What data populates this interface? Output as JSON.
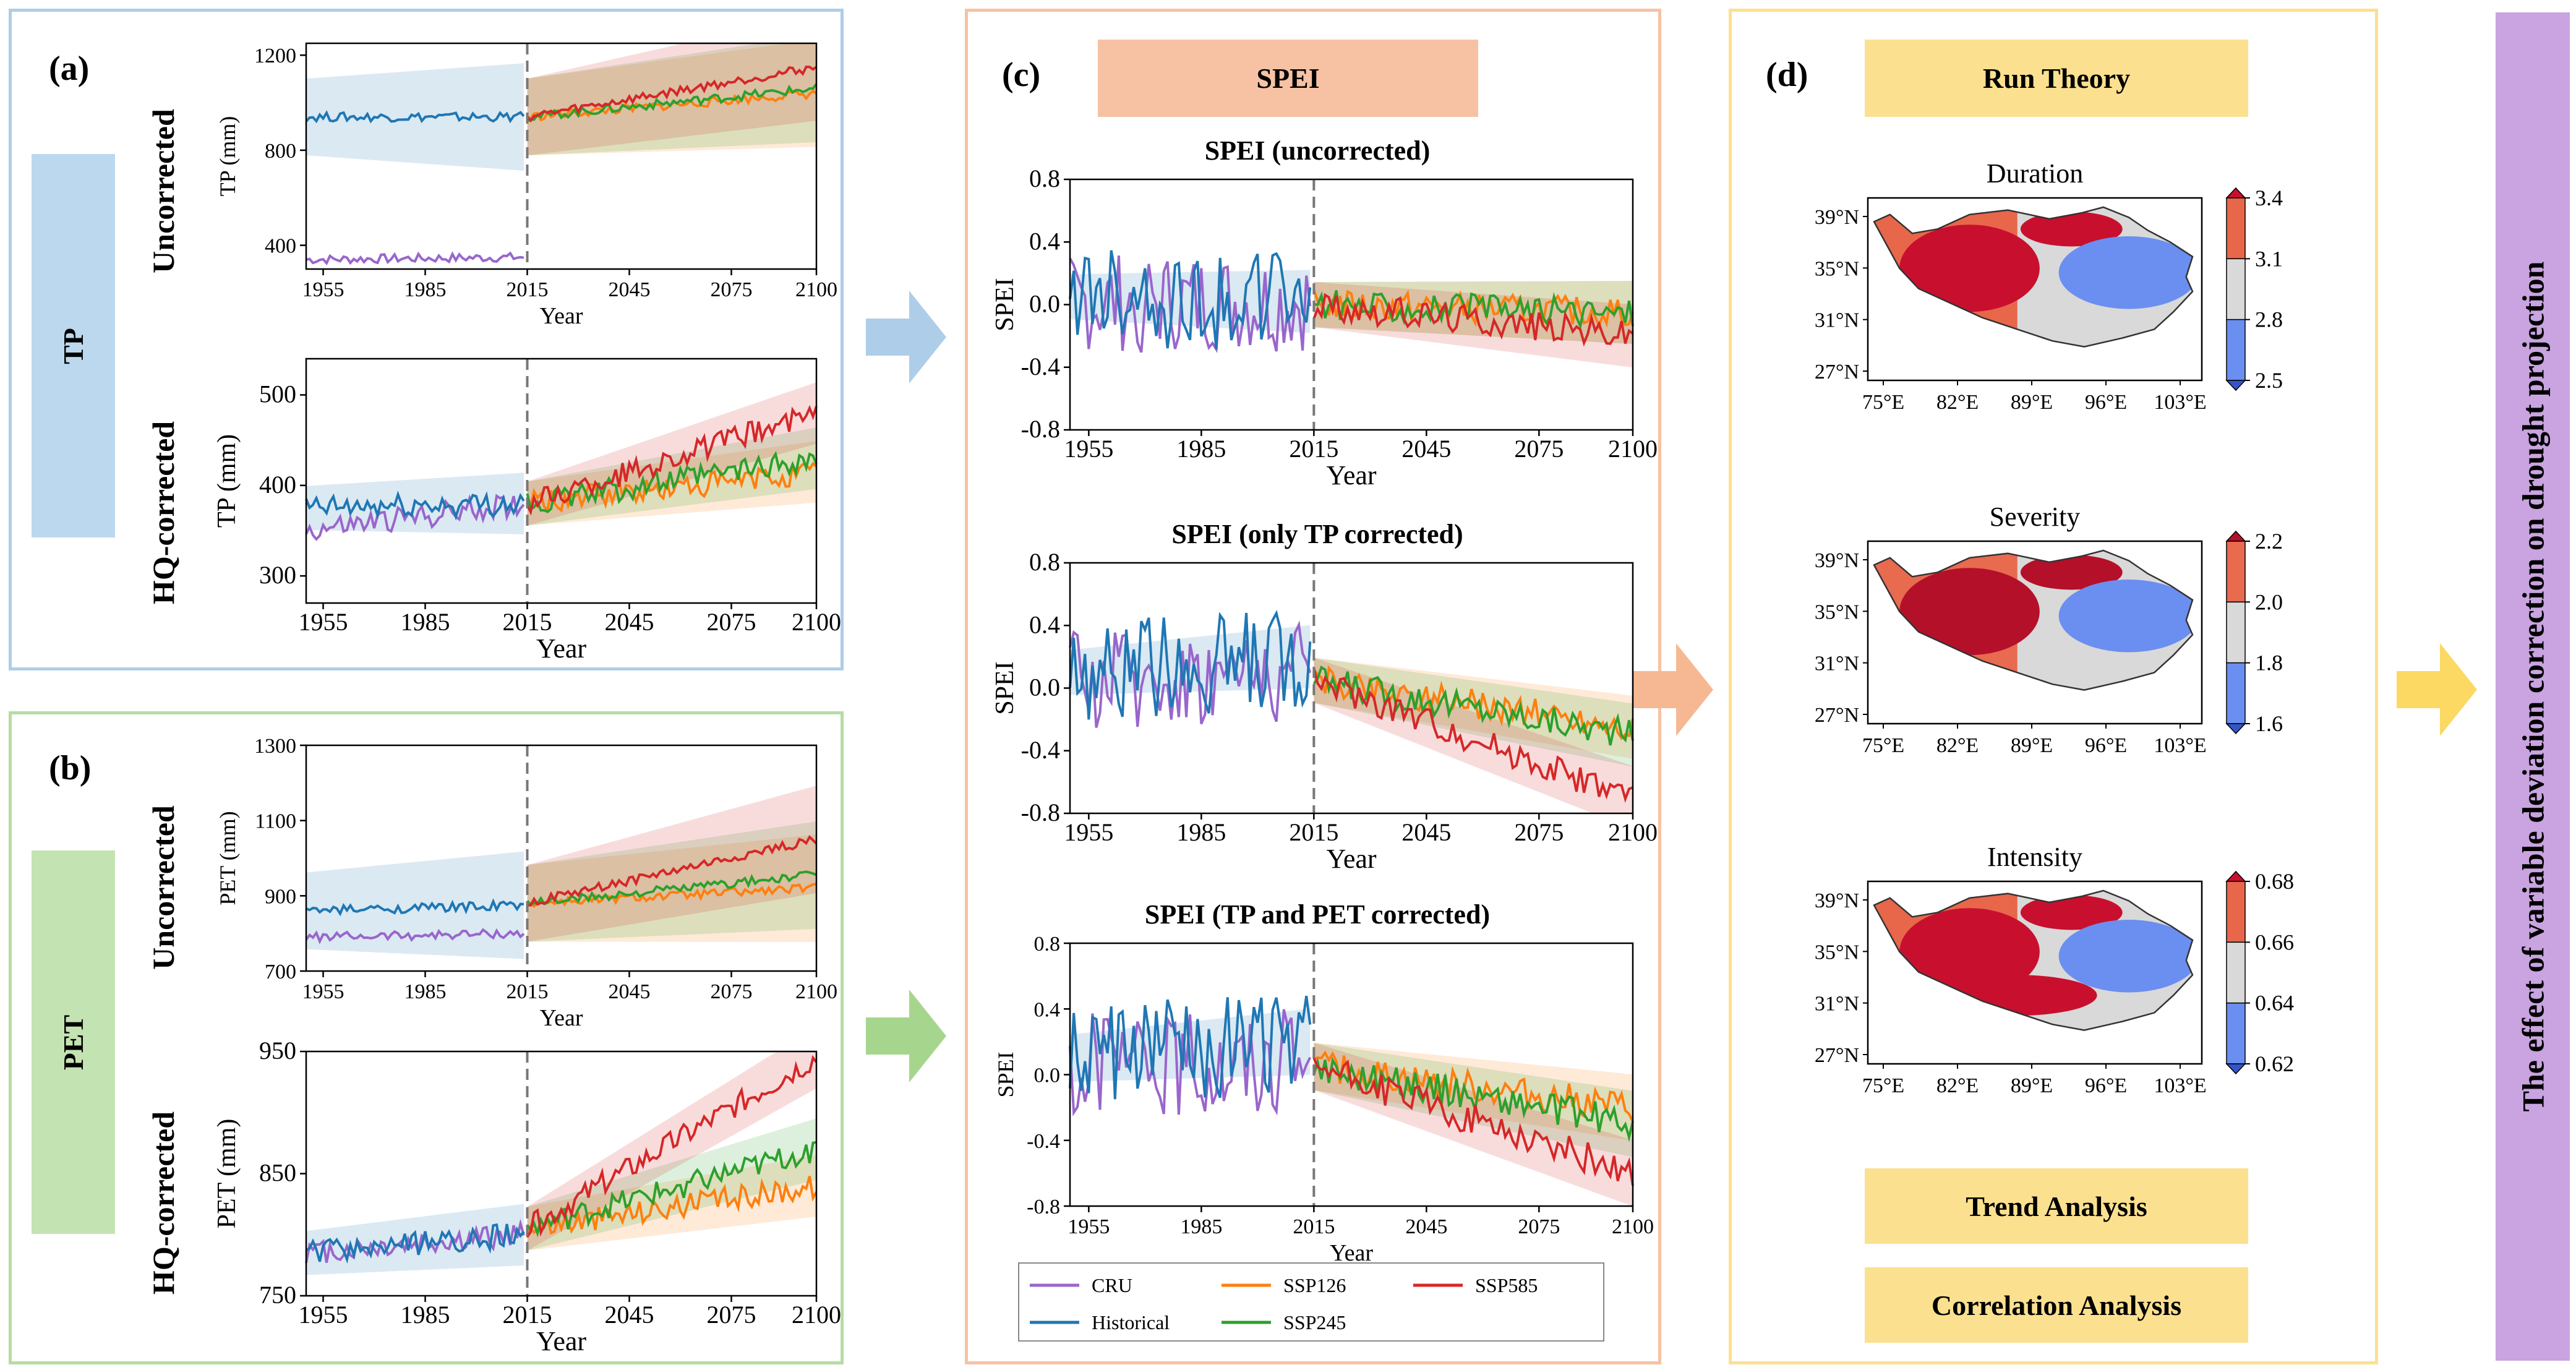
{
  "panels": {
    "a": {
      "letter": "(a)",
      "side_label": "TP"
    },
    "b": {
      "letter": "(b)",
      "side_label": "PET"
    },
    "c": {
      "letter": "(c)",
      "header": "SPEI"
    },
    "d": {
      "letter": "(d)",
      "header": "Run Theory",
      "buttons": [
        "Trend Analysis",
        "Correlation Analysis"
      ]
    }
  },
  "row_labels": {
    "uncorrected": "Uncorrected",
    "corrected": "HQ-corrected"
  },
  "side_banner": "The effect of variable deviation correction on drought projection",
  "colors": {
    "CRU": "#9966cc",
    "Historical": "#1f77b4",
    "SSP126": "#ff7f0e",
    "SSP245": "#2ca02c",
    "SSP585": "#d62728",
    "tp_panel": "#aecde8",
    "pet_panel": "#b7dca2",
    "spei_panel": "#f6c2a3",
    "run_panel": "#fbe08f",
    "banner": "#c9a4e0",
    "arrow_tp": "#aecde8",
    "arrow_pet": "#a6d68e",
    "arrow_spei": "#f6b893",
    "arrow_run": "#fbd962"
  },
  "legend": [
    "CRU",
    "Historical",
    "SSP126",
    "SSP245",
    "SSP585"
  ],
  "chart_data": [
    {
      "id": "tp_unc",
      "type": "line",
      "title": "",
      "xlabel": "Year",
      "ylabel": "TP (mm)",
      "xlim": [
        1950,
        2100
      ],
      "ylim": [
        300,
        1250
      ],
      "xticks": [
        1955,
        1985,
        2015,
        2045,
        2075,
        2100
      ],
      "yticks": [
        400,
        800,
        1200
      ],
      "series": [
        {
          "name": "CRU",
          "x": [
            1950,
            2014
          ],
          "values": [
            340,
            350
          ]
        },
        {
          "name": "Historical",
          "x": [
            1950,
            2014
          ],
          "values": [
            940,
            940
          ]
        },
        {
          "name": "SSP126",
          "x": [
            2015,
            2100
          ],
          "values": [
            940,
            1040
          ]
        },
        {
          "name": "SSP245",
          "x": [
            2015,
            2100
          ],
          "values": [
            940,
            1060
          ]
        },
        {
          "name": "SSP585",
          "x": [
            2015,
            2100
          ],
          "values": [
            940,
            1150
          ]
        }
      ]
    },
    {
      "id": "tp_cor",
      "type": "line",
      "title": "",
      "xlabel": "Year",
      "ylabel": "TP (mm)",
      "xlim": [
        1950,
        2100
      ],
      "ylim": [
        270,
        540
      ],
      "xticks": [
        1955,
        1985,
        2015,
        2045,
        2075,
        2100
      ],
      "yticks": [
        300,
        400,
        500
      ],
      "series": [
        {
          "name": "CRU",
          "x": [
            1950,
            2014
          ],
          "values": [
            350,
            380
          ]
        },
        {
          "name": "Historical",
          "x": [
            1950,
            2014
          ],
          "values": [
            375,
            380
          ]
        },
        {
          "name": "SSP126",
          "x": [
            2015,
            2100
          ],
          "values": [
            380,
            415
          ]
        },
        {
          "name": "SSP245",
          "x": [
            2015,
            2100
          ],
          "values": [
            380,
            430
          ]
        },
        {
          "name": "SSP585",
          "x": [
            2015,
            2100
          ],
          "values": [
            380,
            480
          ]
        }
      ]
    },
    {
      "id": "pet_unc",
      "type": "line",
      "title": "",
      "xlabel": "Year",
      "ylabel": "PET (mm)",
      "xlim": [
        1950,
        2100
      ],
      "ylim": [
        700,
        1300
      ],
      "xticks": [
        1955,
        1985,
        2015,
        2045,
        2075,
        2100
      ],
      "yticks": [
        700,
        900,
        1100,
        1300
      ],
      "series": [
        {
          "name": "CRU",
          "x": [
            1950,
            2014
          ],
          "values": [
            790,
            800
          ]
        },
        {
          "name": "Historical",
          "x": [
            1950,
            2014
          ],
          "values": [
            860,
            875
          ]
        },
        {
          "name": "SSP126",
          "x": [
            2015,
            2100
          ],
          "values": [
            880,
            920
          ]
        },
        {
          "name": "SSP245",
          "x": [
            2015,
            2100
          ],
          "values": [
            880,
            955
          ]
        },
        {
          "name": "SSP585",
          "x": [
            2015,
            2100
          ],
          "values": [
            880,
            1050
          ]
        }
      ]
    },
    {
      "id": "pet_cor",
      "type": "line",
      "title": "",
      "xlabel": "Year",
      "ylabel": "PET (mm)",
      "xlim": [
        1950,
        2100
      ],
      "ylim": [
        750,
        950
      ],
      "xticks": [
        1955,
        1985,
        2015,
        2045,
        2075,
        2100
      ],
      "yticks": [
        750,
        850,
        950
      ],
      "series": [
        {
          "name": "CRU",
          "x": [
            1950,
            2014
          ],
          "values": [
            785,
            800
          ]
        },
        {
          "name": "Historical",
          "x": [
            1950,
            2014
          ],
          "values": [
            785,
            800
          ]
        },
        {
          "name": "SSP126",
          "x": [
            2015,
            2100
          ],
          "values": [
            805,
            840
          ]
        },
        {
          "name": "SSP245",
          "x": [
            2015,
            2100
          ],
          "values": [
            805,
            870
          ]
        },
        {
          "name": "SSP585",
          "x": [
            2015,
            2100
          ],
          "values": [
            805,
            945
          ]
        }
      ]
    },
    {
      "id": "spei_unc",
      "type": "line",
      "title": "SPEI (uncorrected)",
      "xlabel": "Year",
      "ylabel": "SPEI",
      "xlim": [
        1950,
        2100
      ],
      "ylim": [
        -0.8,
        0.8
      ],
      "xticks": [
        1955,
        1985,
        2015,
        2045,
        2075,
        2100
      ],
      "yticks": [
        -0.8,
        -0.4,
        0.0,
        0.4,
        0.8
      ],
      "series": [
        {
          "name": "CRU",
          "x": [
            1950,
            2014
          ],
          "values": [
            0.0,
            0.0
          ]
        },
        {
          "name": "Historical",
          "x": [
            1950,
            2014
          ],
          "values": [
            0.05,
            0.02
          ]
        },
        {
          "name": "SSP126",
          "x": [
            2015,
            2100
          ],
          "values": [
            0.0,
            -0.05
          ]
        },
        {
          "name": "SSP245",
          "x": [
            2015,
            2100
          ],
          "values": [
            0.0,
            -0.05
          ]
        },
        {
          "name": "SSP585",
          "x": [
            2015,
            2100
          ],
          "values": [
            0.0,
            -0.2
          ]
        }
      ]
    },
    {
      "id": "spei_tp",
      "type": "line",
      "title": "SPEI (only TP corrected)",
      "xlabel": "Year",
      "ylabel": "SPEI",
      "xlim": [
        1950,
        2100
      ],
      "ylim": [
        -0.8,
        0.8
      ],
      "xticks": [
        1955,
        1985,
        2015,
        2045,
        2075,
        2100
      ],
      "yticks": [
        -0.8,
        -0.4,
        0.0,
        0.4,
        0.8
      ],
      "series": [
        {
          "name": "CRU",
          "x": [
            1950,
            2014
          ],
          "values": [
            0.05,
            0.1
          ]
        },
        {
          "name": "Historical",
          "x": [
            1950,
            2014
          ],
          "values": [
            0.1,
            0.2
          ]
        },
        {
          "name": "SSP126",
          "x": [
            2015,
            2100
          ],
          "values": [
            0.05,
            -0.25
          ]
        },
        {
          "name": "SSP245",
          "x": [
            2015,
            2100
          ],
          "values": [
            0.05,
            -0.3
          ]
        },
        {
          "name": "SSP585",
          "x": [
            2015,
            2100
          ],
          "values": [
            0.05,
            -0.7
          ]
        }
      ]
    },
    {
      "id": "spei_both",
      "type": "line",
      "title": "SPEI (TP and PET corrected)",
      "xlabel": "Year",
      "ylabel": "SPEI",
      "xlim": [
        1950,
        2100
      ],
      "ylim": [
        -0.8,
        0.8
      ],
      "xticks": [
        1955,
        1985,
        2015,
        2045,
        2075,
        2100
      ],
      "yticks": [
        -0.8,
        -0.4,
        0.0,
        0.4,
        0.8
      ],
      "series": [
        {
          "name": "CRU",
          "x": [
            1950,
            2014
          ],
          "values": [
            0.05,
            0.1
          ]
        },
        {
          "name": "Historical",
          "x": [
            1950,
            2014
          ],
          "values": [
            0.1,
            0.2
          ]
        },
        {
          "name": "SSP126",
          "x": [
            2015,
            2100
          ],
          "values": [
            0.05,
            -0.2
          ]
        },
        {
          "name": "SSP245",
          "x": [
            2015,
            2100
          ],
          "values": [
            0.05,
            -0.3
          ]
        },
        {
          "name": "SSP585",
          "x": [
            2015,
            2100
          ],
          "values": [
            0.05,
            -0.6
          ]
        }
      ]
    }
  ],
  "maps": [
    {
      "id": "duration",
      "title": "Duration",
      "colorbar": [
        "3.4",
        "3.1",
        "2.8",
        "2.5"
      ]
    },
    {
      "id": "severity",
      "title": "Severity",
      "colorbar": [
        "2.2",
        "2.0",
        "1.8",
        "1.6"
      ]
    },
    {
      "id": "intensity",
      "title": "Intensity",
      "colorbar": [
        "0.68",
        "0.66",
        "0.64",
        "0.62"
      ]
    }
  ],
  "map_axes": {
    "lat": [
      "39°N",
      "35°N",
      "31°N",
      "27°N"
    ],
    "lon": [
      "75°E",
      "82°E",
      "89°E",
      "96°E",
      "103°E"
    ]
  }
}
